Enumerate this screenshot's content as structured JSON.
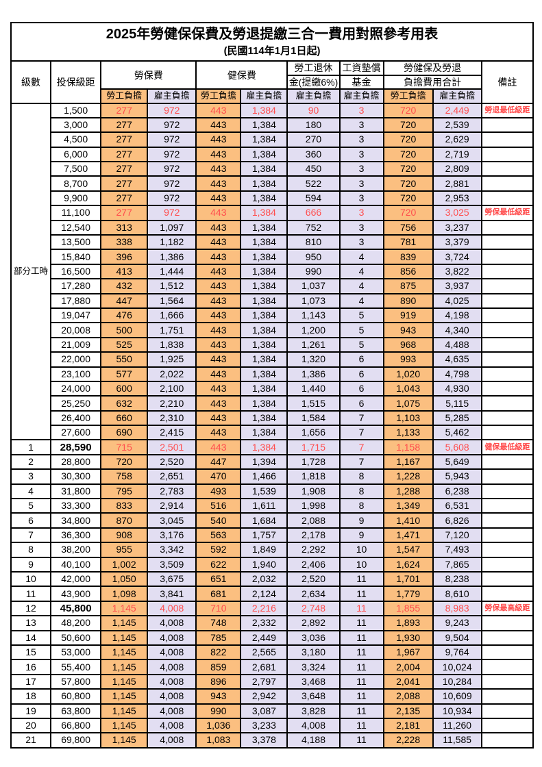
{
  "title": "2025年勞健保保費及勞退提繳三合一費用對照參考用表",
  "subtitle": "(民國114年1月1日起)",
  "columns": {
    "level": "級數",
    "bracket": "投保級距",
    "labor_ins": "勞保費",
    "health_ins": "健保費",
    "pension_l1": "勞工退休",
    "pension_l2": "金(提繳6%)",
    "fund_l1": "工資墊償",
    "fund_l2": "基金",
    "total_l1": "勞健保及勞退",
    "total_l2": "負擔費用合計",
    "remark": "備註",
    "employee": "勞工負擔",
    "employer": "雇主負擔"
  },
  "part_time": {
    "label": "部分工時",
    "rowspan": 23
  },
  "colors": {
    "orange": "#FBBF80",
    "lavender": "#E2DEF2",
    "red": "#FF4D4D"
  },
  "rows": [
    {
      "level": "",
      "bracket": "1,500",
      "li_emp": "277",
      "li_er": "972",
      "hi_emp": "443",
      "hi_er": "1,384",
      "pension": "90",
      "fund": "3",
      "tot_emp": "720",
      "tot_er": "2,449",
      "remark": "勞退最低級距",
      "red": true,
      "em": false
    },
    {
      "level": "",
      "bracket": "3,000",
      "li_emp": "277",
      "li_er": "972",
      "hi_emp": "443",
      "hi_er": "1,384",
      "pension": "180",
      "fund": "3",
      "tot_emp": "720",
      "tot_er": "2,539",
      "remark": "",
      "red": false,
      "em": false
    },
    {
      "level": "",
      "bracket": "4,500",
      "li_emp": "277",
      "li_er": "972",
      "hi_emp": "443",
      "hi_er": "1,384",
      "pension": "270",
      "fund": "3",
      "tot_emp": "720",
      "tot_er": "2,629",
      "remark": "",
      "red": false,
      "em": false
    },
    {
      "level": "",
      "bracket": "6,000",
      "li_emp": "277",
      "li_er": "972",
      "hi_emp": "443",
      "hi_er": "1,384",
      "pension": "360",
      "fund": "3",
      "tot_emp": "720",
      "tot_er": "2,719",
      "remark": "",
      "red": false,
      "em": false
    },
    {
      "level": "",
      "bracket": "7,500",
      "li_emp": "277",
      "li_er": "972",
      "hi_emp": "443",
      "hi_er": "1,384",
      "pension": "450",
      "fund": "3",
      "tot_emp": "720",
      "tot_er": "2,809",
      "remark": "",
      "red": false,
      "em": false
    },
    {
      "level": "",
      "bracket": "8,700",
      "li_emp": "277",
      "li_er": "972",
      "hi_emp": "443",
      "hi_er": "1,384",
      "pension": "522",
      "fund": "3",
      "tot_emp": "720",
      "tot_er": "2,881",
      "remark": "",
      "red": false,
      "em": false
    },
    {
      "level": "",
      "bracket": "9,900",
      "li_emp": "277",
      "li_er": "972",
      "hi_emp": "443",
      "hi_er": "1,384",
      "pension": "594",
      "fund": "3",
      "tot_emp": "720",
      "tot_er": "2,953",
      "remark": "",
      "red": false,
      "em": false
    },
    {
      "level": "",
      "bracket": "11,100",
      "li_emp": "277",
      "li_er": "972",
      "hi_emp": "443",
      "hi_er": "1,384",
      "pension": "666",
      "fund": "3",
      "tot_emp": "720",
      "tot_er": "3,025",
      "remark": "勞保最低級距",
      "red": true,
      "em": false
    },
    {
      "level": "",
      "bracket": "12,540",
      "li_emp": "313",
      "li_er": "1,097",
      "hi_emp": "443",
      "hi_er": "1,384",
      "pension": "752",
      "fund": "3",
      "tot_emp": "756",
      "tot_er": "3,237",
      "remark": "",
      "red": false,
      "em": false
    },
    {
      "level": "",
      "bracket": "13,500",
      "li_emp": "338",
      "li_er": "1,182",
      "hi_emp": "443",
      "hi_er": "1,384",
      "pension": "810",
      "fund": "3",
      "tot_emp": "781",
      "tot_er": "3,379",
      "remark": "",
      "red": false,
      "em": false
    },
    {
      "level": "",
      "bracket": "15,840",
      "li_emp": "396",
      "li_er": "1,386",
      "hi_emp": "443",
      "hi_er": "1,384",
      "pension": "950",
      "fund": "4",
      "tot_emp": "839",
      "tot_er": "3,724",
      "remark": "",
      "red": false,
      "em": false
    },
    {
      "level": "",
      "bracket": "16,500",
      "li_emp": "413",
      "li_er": "1,444",
      "hi_emp": "443",
      "hi_er": "1,384",
      "pension": "990",
      "fund": "4",
      "tot_emp": "856",
      "tot_er": "3,822",
      "remark": "",
      "red": false,
      "em": false
    },
    {
      "level": "",
      "bracket": "17,280",
      "li_emp": "432",
      "li_er": "1,512",
      "hi_emp": "443",
      "hi_er": "1,384",
      "pension": "1,037",
      "fund": "4",
      "tot_emp": "875",
      "tot_er": "3,937",
      "remark": "",
      "red": false,
      "em": false
    },
    {
      "level": "",
      "bracket": "17,880",
      "li_emp": "447",
      "li_er": "1,564",
      "hi_emp": "443",
      "hi_er": "1,384",
      "pension": "1,073",
      "fund": "4",
      "tot_emp": "890",
      "tot_er": "4,025",
      "remark": "",
      "red": false,
      "em": false
    },
    {
      "level": "",
      "bracket": "19,047",
      "li_emp": "476",
      "li_er": "1,666",
      "hi_emp": "443",
      "hi_er": "1,384",
      "pension": "1,143",
      "fund": "5",
      "tot_emp": "919",
      "tot_er": "4,198",
      "remark": "",
      "red": false,
      "em": false
    },
    {
      "level": "",
      "bracket": "20,008",
      "li_emp": "500",
      "li_er": "1,751",
      "hi_emp": "443",
      "hi_er": "1,384",
      "pension": "1,200",
      "fund": "5",
      "tot_emp": "943",
      "tot_er": "4,340",
      "remark": "",
      "red": false,
      "em": false
    },
    {
      "level": "",
      "bracket": "21,009",
      "li_emp": "525",
      "li_er": "1,838",
      "hi_emp": "443",
      "hi_er": "1,384",
      "pension": "1,261",
      "fund": "5",
      "tot_emp": "968",
      "tot_er": "4,488",
      "remark": "",
      "red": false,
      "em": false
    },
    {
      "level": "",
      "bracket": "22,000",
      "li_emp": "550",
      "li_er": "1,925",
      "hi_emp": "443",
      "hi_er": "1,384",
      "pension": "1,320",
      "fund": "6",
      "tot_emp": "993",
      "tot_er": "4,635",
      "remark": "",
      "red": false,
      "em": false
    },
    {
      "level": "",
      "bracket": "23,100",
      "li_emp": "577",
      "li_er": "2,022",
      "hi_emp": "443",
      "hi_er": "1,384",
      "pension": "1,386",
      "fund": "6",
      "tot_emp": "1,020",
      "tot_er": "4,798",
      "remark": "",
      "red": false,
      "em": false
    },
    {
      "level": "",
      "bracket": "24,000",
      "li_emp": "600",
      "li_er": "2,100",
      "hi_emp": "443",
      "hi_er": "1,384",
      "pension": "1,440",
      "fund": "6",
      "tot_emp": "1,043",
      "tot_er": "4,930",
      "remark": "",
      "red": false,
      "em": false
    },
    {
      "level": "",
      "bracket": "25,250",
      "li_emp": "632",
      "li_er": "2,210",
      "hi_emp": "443",
      "hi_er": "1,384",
      "pension": "1,515",
      "fund": "6",
      "tot_emp": "1,075",
      "tot_er": "5,115",
      "remark": "",
      "red": false,
      "em": false
    },
    {
      "level": "",
      "bracket": "26,400",
      "li_emp": "660",
      "li_er": "2,310",
      "hi_emp": "443",
      "hi_er": "1,384",
      "pension": "1,584",
      "fund": "7",
      "tot_emp": "1,103",
      "tot_er": "5,285",
      "remark": "",
      "red": false,
      "em": false
    },
    {
      "level": "",
      "bracket": "27,600",
      "li_emp": "690",
      "li_er": "2,415",
      "hi_emp": "443",
      "hi_er": "1,384",
      "pension": "1,656",
      "fund": "7",
      "tot_emp": "1,133",
      "tot_er": "5,462",
      "remark": "",
      "red": false,
      "em": false
    },
    {
      "level": "1",
      "bracket": "28,590",
      "li_emp": "715",
      "li_er": "2,501",
      "hi_emp": "443",
      "hi_er": "1,384",
      "pension": "1,715",
      "fund": "7",
      "tot_emp": "1,158",
      "tot_er": "5,608",
      "remark": "健保最低級距",
      "red": true,
      "em": true
    },
    {
      "level": "2",
      "bracket": "28,800",
      "li_emp": "720",
      "li_er": "2,520",
      "hi_emp": "447",
      "hi_er": "1,394",
      "pension": "1,728",
      "fund": "7",
      "tot_emp": "1,167",
      "tot_er": "5,649",
      "remark": "",
      "red": false,
      "em": false
    },
    {
      "level": "3",
      "bracket": "30,300",
      "li_emp": "758",
      "li_er": "2,651",
      "hi_emp": "470",
      "hi_er": "1,466",
      "pension": "1,818",
      "fund": "8",
      "tot_emp": "1,228",
      "tot_er": "5,943",
      "remark": "",
      "red": false,
      "em": false
    },
    {
      "level": "4",
      "bracket": "31,800",
      "li_emp": "795",
      "li_er": "2,783",
      "hi_emp": "493",
      "hi_er": "1,539",
      "pension": "1,908",
      "fund": "8",
      "tot_emp": "1,288",
      "tot_er": "6,238",
      "remark": "",
      "red": false,
      "em": false
    },
    {
      "level": "5",
      "bracket": "33,300",
      "li_emp": "833",
      "li_er": "2,914",
      "hi_emp": "516",
      "hi_er": "1,611",
      "pension": "1,998",
      "fund": "8",
      "tot_emp": "1,349",
      "tot_er": "6,531",
      "remark": "",
      "red": false,
      "em": false
    },
    {
      "level": "6",
      "bracket": "34,800",
      "li_emp": "870",
      "li_er": "3,045",
      "hi_emp": "540",
      "hi_er": "1,684",
      "pension": "2,088",
      "fund": "9",
      "tot_emp": "1,410",
      "tot_er": "6,826",
      "remark": "",
      "red": false,
      "em": false
    },
    {
      "level": "7",
      "bracket": "36,300",
      "li_emp": "908",
      "li_er": "3,176",
      "hi_emp": "563",
      "hi_er": "1,757",
      "pension": "2,178",
      "fund": "9",
      "tot_emp": "1,471",
      "tot_er": "7,120",
      "remark": "",
      "red": false,
      "em": false
    },
    {
      "level": "8",
      "bracket": "38,200",
      "li_emp": "955",
      "li_er": "3,342",
      "hi_emp": "592",
      "hi_er": "1,849",
      "pension": "2,292",
      "fund": "10",
      "tot_emp": "1,547",
      "tot_er": "7,493",
      "remark": "",
      "red": false,
      "em": false
    },
    {
      "level": "9",
      "bracket": "40,100",
      "li_emp": "1,002",
      "li_er": "3,509",
      "hi_emp": "622",
      "hi_er": "1,940",
      "pension": "2,406",
      "fund": "10",
      "tot_emp": "1,624",
      "tot_er": "7,865",
      "remark": "",
      "red": false,
      "em": false
    },
    {
      "level": "10",
      "bracket": "42,000",
      "li_emp": "1,050",
      "li_er": "3,675",
      "hi_emp": "651",
      "hi_er": "2,032",
      "pension": "2,520",
      "fund": "11",
      "tot_emp": "1,701",
      "tot_er": "8,238",
      "remark": "",
      "red": false,
      "em": false
    },
    {
      "level": "11",
      "bracket": "43,900",
      "li_emp": "1,098",
      "li_er": "3,841",
      "hi_emp": "681",
      "hi_er": "2,124",
      "pension": "2,634",
      "fund": "11",
      "tot_emp": "1,779",
      "tot_er": "8,610",
      "remark": "",
      "red": false,
      "em": false
    },
    {
      "level": "12",
      "bracket": "45,800",
      "li_emp": "1,145",
      "li_er": "4,008",
      "hi_emp": "710",
      "hi_er": "2,216",
      "pension": "2,748",
      "fund": "11",
      "tot_emp": "1,855",
      "tot_er": "8,983",
      "remark": "勞保最高級距",
      "red": true,
      "em": true
    },
    {
      "level": "13",
      "bracket": "48,200",
      "li_emp": "1,145",
      "li_er": "4,008",
      "hi_emp": "748",
      "hi_er": "2,332",
      "pension": "2,892",
      "fund": "11",
      "tot_emp": "1,893",
      "tot_er": "9,243",
      "remark": "",
      "red": false,
      "em": false
    },
    {
      "level": "14",
      "bracket": "50,600",
      "li_emp": "1,145",
      "li_er": "4,008",
      "hi_emp": "785",
      "hi_er": "2,449",
      "pension": "3,036",
      "fund": "11",
      "tot_emp": "1,930",
      "tot_er": "9,504",
      "remark": "",
      "red": false,
      "em": false
    },
    {
      "level": "15",
      "bracket": "53,000",
      "li_emp": "1,145",
      "li_er": "4,008",
      "hi_emp": "822",
      "hi_er": "2,565",
      "pension": "3,180",
      "fund": "11",
      "tot_emp": "1,967",
      "tot_er": "9,764",
      "remark": "",
      "red": false,
      "em": false
    },
    {
      "level": "16",
      "bracket": "55,400",
      "li_emp": "1,145",
      "li_er": "4,008",
      "hi_emp": "859",
      "hi_er": "2,681",
      "pension": "3,324",
      "fund": "11",
      "tot_emp": "2,004",
      "tot_er": "10,024",
      "remark": "",
      "red": false,
      "em": false
    },
    {
      "level": "17",
      "bracket": "57,800",
      "li_emp": "1,145",
      "li_er": "4,008",
      "hi_emp": "896",
      "hi_er": "2,797",
      "pension": "3,468",
      "fund": "11",
      "tot_emp": "2,041",
      "tot_er": "10,284",
      "remark": "",
      "red": false,
      "em": false
    },
    {
      "level": "18",
      "bracket": "60,800",
      "li_emp": "1,145",
      "li_er": "4,008",
      "hi_emp": "943",
      "hi_er": "2,942",
      "pension": "3,648",
      "fund": "11",
      "tot_emp": "2,088",
      "tot_er": "10,609",
      "remark": "",
      "red": false,
      "em": false
    },
    {
      "level": "19",
      "bracket": "63,800",
      "li_emp": "1,145",
      "li_er": "4,008",
      "hi_emp": "990",
      "hi_er": "3,087",
      "pension": "3,828",
      "fund": "11",
      "tot_emp": "2,135",
      "tot_er": "10,934",
      "remark": "",
      "red": false,
      "em": false
    },
    {
      "level": "20",
      "bracket": "66,800",
      "li_emp": "1,145",
      "li_er": "4,008",
      "hi_emp": "1,036",
      "hi_er": "3,233",
      "pension": "4,008",
      "fund": "11",
      "tot_emp": "2,181",
      "tot_er": "11,260",
      "remark": "",
      "red": false,
      "em": false
    },
    {
      "level": "21",
      "bracket": "69,800",
      "li_emp": "1,145",
      "li_er": "4,008",
      "hi_emp": "1,083",
      "hi_er": "3,378",
      "pension": "4,188",
      "fund": "11",
      "tot_emp": "2,228",
      "tot_er": "11,585",
      "remark": "",
      "red": false,
      "em": false
    }
  ]
}
